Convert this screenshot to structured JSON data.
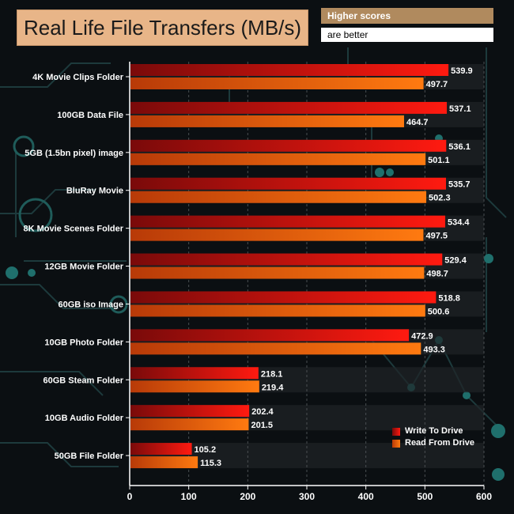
{
  "header": {
    "title": "Real Life File Transfers (MB/s)",
    "note_line1": "Higher scores",
    "note_line2": "are better"
  },
  "colors": {
    "write": "#e8160e",
    "read": "#f05a0a",
    "title_bg": "#e8b588",
    "note_bg": "#b08a5e"
  },
  "chart_data": {
    "type": "bar",
    "orientation": "horizontal",
    "title": "Real Life File Transfers (MB/s)",
    "categories": [
      "4K Movie Clips Folder",
      "100GB Data File",
      "5GB (1.5bn pixel) image",
      "BluRay Movie",
      "8K Movie Scenes Folder",
      "12GB Movie Folder",
      "60GB iso Image",
      "10GB Photo Folder",
      "60GB Steam Folder",
      "10GB Audio Folder",
      "50GB File Folder"
    ],
    "series": [
      {
        "name": "Write To  Drive",
        "values": [
          539.9,
          537.1,
          536.1,
          535.7,
          534.4,
          529.4,
          518.8,
          472.9,
          218.1,
          202.4,
          105.2
        ]
      },
      {
        "name": "Read From  Drive",
        "values": [
          497.7,
          464.7,
          501.1,
          502.3,
          497.5,
          498.7,
          500.6,
          493.3,
          219.4,
          201.5,
          115.3
        ]
      }
    ],
    "xlim": [
      0,
      600
    ],
    "xticks": [
      "0",
      "100",
      "200",
      "300",
      "400",
      "500",
      "600"
    ],
    "legend": "bottom-right"
  }
}
